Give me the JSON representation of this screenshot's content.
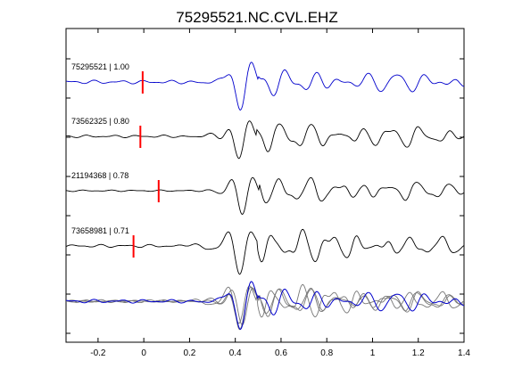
{
  "chart_data": {
    "type": "line",
    "title": "75295521.NC.CVL.EHZ",
    "xlabel": "",
    "ylabel": "",
    "xlim": [
      -0.34,
      1.4
    ],
    "x_ticks": [
      -0.2,
      0,
      0.2,
      0.4,
      0.6,
      0.8,
      1,
      1.2,
      1.4
    ],
    "x_tick_labels": [
      "-0.2",
      "0",
      "0.2",
      "0.4",
      "0.6",
      "0.8",
      "1",
      "1.2",
      "1.4"
    ],
    "y_tick_count": 8,
    "grid": false,
    "colors": {
      "reference": "#0000cc",
      "trace": "#000000",
      "overlay": "#777777",
      "pick": "#ff0000"
    },
    "series": [
      {
        "name": "75295521 | 1.00",
        "color": "#0000cc",
        "pick_time": -0.005,
        "onset": 0.2,
        "noise": 0.07,
        "amp": 1.0,
        "phase": 0.0,
        "seed": 1.3,
        "jitter": 0.0,
        "coda": 0.55
      },
      {
        "name": "73562325 | 0.80",
        "color": "#000000",
        "pick_time": -0.015,
        "onset": 0.18,
        "noise": 0.05,
        "amp": 0.95,
        "phase": 0.006,
        "seed": 2.7,
        "jitter": 0.06,
        "coda": 0.6
      },
      {
        "name": "21194368 | 0.78",
        "color": "#000000",
        "pick_time": 0.065,
        "onset": 0.25,
        "noise": 0.03,
        "amp": 1.0,
        "phase": -0.006,
        "seed": 4.1,
        "jitter": 0.07,
        "coda": 0.55
      },
      {
        "name": "73658981 | 0.71",
        "color": "#000000",
        "pick_time": -0.045,
        "onset": 0.12,
        "noise": 0.06,
        "amp": 0.95,
        "phase": 0.004,
        "seed": 5.9,
        "jitter": 0.09,
        "coda": 0.7
      }
    ]
  }
}
